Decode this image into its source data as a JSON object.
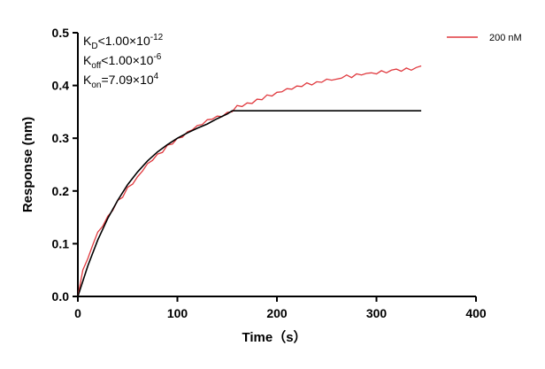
{
  "chart_data": {
    "type": "line",
    "xlabel": "Time（s）",
    "ylabel": "Response (nm)",
    "xlim": [
      0,
      400
    ],
    "xticks": [
      0,
      100,
      200,
      300,
      400
    ],
    "ylim": [
      0,
      0.5
    ],
    "yticks": [
      {
        "value": 0,
        "label": "0.0"
      },
      0.1,
      0.2,
      0.3,
      0.4,
      0.5
    ],
    "legend": "top-right",
    "annotations": [
      {
        "label": "K",
        "sub": "D",
        "text": "<1.00×10",
        "sup": "-12"
      },
      {
        "label": "K",
        "sub": "off",
        "text": "<1.00×10",
        "sup": "-6"
      },
      {
        "label": "K",
        "sub": "on",
        "text": "=7.09×10",
        "sup": "4"
      }
    ],
    "series": [
      {
        "name": "200 nM",
        "color": "#e0393e",
        "x": [
          0,
          5,
          10,
          15,
          20,
          25,
          30,
          35,
          40,
          45,
          50,
          55,
          60,
          65,
          70,
          75,
          80,
          85,
          90,
          95,
          100,
          105,
          110,
          115,
          120,
          125,
          130,
          135,
          140,
          145,
          150,
          155,
          160,
          165,
          170,
          175,
          180,
          185,
          190,
          195,
          200,
          205,
          210,
          215,
          220,
          225,
          230,
          235,
          240,
          245,
          250,
          255,
          260,
          265,
          270,
          275,
          280,
          285,
          290,
          295,
          300,
          305,
          310,
          315,
          320,
          325,
          330,
          335,
          340,
          345
        ],
        "values": [
          0.0,
          0.05,
          0.072,
          0.098,
          0.122,
          0.133,
          0.152,
          0.163,
          0.182,
          0.188,
          0.207,
          0.213,
          0.227,
          0.238,
          0.252,
          0.258,
          0.27,
          0.273,
          0.287,
          0.289,
          0.3,
          0.302,
          0.312,
          0.316,
          0.324,
          0.326,
          0.335,
          0.336,
          0.342,
          0.341,
          0.349,
          0.35,
          0.362,
          0.36,
          0.367,
          0.366,
          0.374,
          0.373,
          0.382,
          0.38,
          0.387,
          0.388,
          0.394,
          0.393,
          0.399,
          0.398,
          0.405,
          0.401,
          0.407,
          0.406,
          0.412,
          0.41,
          0.412,
          0.414,
          0.42,
          0.415,
          0.422,
          0.42,
          0.423,
          0.424,
          0.422,
          0.428,
          0.424,
          0.429,
          0.431,
          0.427,
          0.433,
          0.429,
          0.434,
          0.437
        ]
      },
      {
        "name": null,
        "color": "#000000",
        "x": [
          0,
          10,
          20,
          30,
          40,
          50,
          60,
          70,
          80,
          90,
          100,
          110,
          120,
          130,
          140,
          150,
          155,
          345
        ],
        "values": [
          0,
          0.058,
          0.107,
          0.148,
          0.182,
          0.212,
          0.236,
          0.257,
          0.274,
          0.288,
          0.3,
          0.31,
          0.319,
          0.327,
          0.337,
          0.346,
          0.352,
          0.352
        ]
      }
    ]
  }
}
